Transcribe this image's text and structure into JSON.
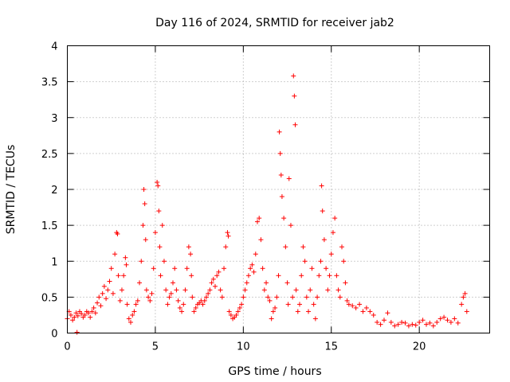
{
  "chart_data": {
    "type": "scatter",
    "title": "Day 116 of 2024, SRMTID for receiver jab2",
    "xlabel": "GPS time / hours",
    "ylabel": "SRMTID / TECUs",
    "xlim": [
      0,
      24
    ],
    "ylim": [
      0,
      4
    ],
    "xticks": [
      0,
      5,
      10,
      15,
      20
    ],
    "yticks": [
      0,
      0.5,
      1,
      1.5,
      2,
      2.5,
      3,
      3.5,
      4
    ],
    "xtick_labels": [
      "0",
      "5",
      "10",
      "15",
      "20"
    ],
    "ytick_labels": [
      "0",
      "0.5",
      "1",
      "1.5",
      "2",
      "2.5",
      "3",
      "3.5",
      "4"
    ],
    "grid": true,
    "marker": "+",
    "color": "#ff0000",
    "series": [
      {
        "name": "SRMTID",
        "x": [
          0.0,
          0.1,
          0.2,
          0.3,
          0.4,
          0.5,
          0.55,
          0.6,
          0.7,
          0.8,
          0.9,
          1.0,
          1.1,
          1.2,
          1.3,
          1.4,
          1.5,
          1.6,
          1.7,
          1.8,
          1.9,
          2.0,
          2.1,
          2.2,
          2.3,
          2.4,
          2.5,
          2.6,
          2.7,
          2.8,
          2.85,
          2.9,
          3.0,
          3.1,
          3.2,
          3.3,
          3.35,
          3.4,
          3.5,
          3.6,
          3.7,
          3.8,
          3.9,
          4.0,
          4.1,
          4.2,
          4.3,
          4.35,
          4.4,
          4.45,
          4.5,
          4.6,
          4.7,
          4.8,
          4.9,
          5.0,
          5.1,
          5.15,
          5.2,
          5.25,
          5.3,
          5.4,
          5.5,
          5.6,
          5.7,
          5.8,
          5.9,
          6.0,
          6.1,
          6.2,
          6.3,
          6.4,
          6.5,
          6.6,
          6.7,
          6.8,
          6.9,
          7.0,
          7.05,
          7.1,
          7.2,
          7.3,
          7.4,
          7.5,
          7.6,
          7.7,
          7.8,
          7.9,
          8.0,
          8.1,
          8.2,
          8.3,
          8.4,
          8.5,
          8.6,
          8.7,
          8.8,
          8.9,
          9.0,
          9.1,
          9.15,
          9.2,
          9.3,
          9.4,
          9.5,
          9.6,
          9.7,
          9.8,
          9.9,
          10.0,
          10.1,
          10.2,
          10.3,
          10.4,
          10.5,
          10.6,
          10.7,
          10.8,
          10.9,
          11.0,
          11.1,
          11.2,
          11.3,
          11.4,
          11.5,
          11.6,
          11.7,
          11.8,
          11.9,
          12.0,
          12.05,
          12.1,
          12.15,
          12.2,
          12.3,
          12.4,
          12.5,
          12.55,
          12.6,
          12.7,
          12.8,
          12.85,
          12.9,
          12.95,
          13.0,
          13.1,
          13.2,
          13.3,
          13.4,
          13.5,
          13.6,
          13.7,
          13.8,
          13.9,
          14.0,
          14.1,
          14.2,
          14.3,
          14.4,
          14.45,
          14.5,
          14.6,
          14.7,
          14.8,
          14.9,
          15.0,
          15.1,
          15.2,
          15.3,
          15.4,
          15.5,
          15.6,
          15.7,
          15.8,
          15.9,
          16.0,
          16.2,
          16.4,
          16.6,
          16.8,
          17.0,
          17.2,
          17.4,
          17.6,
          17.8,
          18.0,
          18.2,
          18.4,
          18.6,
          18.8,
          19.0,
          19.2,
          19.4,
          19.6,
          19.8,
          20.0,
          20.2,
          20.4,
          20.6,
          20.8,
          21.0,
          21.2,
          21.4,
          21.6,
          21.8,
          22.0,
          22.2,
          22.4,
          22.5,
          22.6,
          22.7
        ],
        "y": [
          0.2,
          0.3,
          0.25,
          0.18,
          0.22,
          0.28,
          0.01,
          0.24,
          0.3,
          0.27,
          0.22,
          0.25,
          0.3,
          0.28,
          0.22,
          0.3,
          0.35,
          0.28,
          0.42,
          0.5,
          0.38,
          0.55,
          0.65,
          0.48,
          0.6,
          0.72,
          0.9,
          0.55,
          1.1,
          1.4,
          1.38,
          0.8,
          0.45,
          0.6,
          0.8,
          1.05,
          0.95,
          0.4,
          0.2,
          0.15,
          0.25,
          0.3,
          0.4,
          0.45,
          0.7,
          1.0,
          1.5,
          2.0,
          1.8,
          1.3,
          0.6,
          0.5,
          0.45,
          0.55,
          0.9,
          1.4,
          2.1,
          2.05,
          1.7,
          1.2,
          0.8,
          1.5,
          1.0,
          0.6,
          0.4,
          0.5,
          0.55,
          0.7,
          0.9,
          0.6,
          0.45,
          0.35,
          0.3,
          0.4,
          0.6,
          0.9,
          1.2,
          1.1,
          0.8,
          0.5,
          0.3,
          0.35,
          0.4,
          0.42,
          0.45,
          0.4,
          0.45,
          0.5,
          0.55,
          0.6,
          0.7,
          0.75,
          0.65,
          0.8,
          0.85,
          0.6,
          0.5,
          0.9,
          1.2,
          1.4,
          1.35,
          0.3,
          0.25,
          0.2,
          0.22,
          0.25,
          0.3,
          0.35,
          0.4,
          0.5,
          0.6,
          0.7,
          0.8,
          0.9,
          0.95,
          0.85,
          1.1,
          1.55,
          1.6,
          1.3,
          0.9,
          0.6,
          0.7,
          0.5,
          0.45,
          0.2,
          0.3,
          0.35,
          0.5,
          0.8,
          2.8,
          2.5,
          2.2,
          1.9,
          1.6,
          1.2,
          0.7,
          0.4,
          2.15,
          1.5,
          0.5,
          3.58,
          3.3,
          2.9,
          0.6,
          0.3,
          0.4,
          0.8,
          1.2,
          1.0,
          0.5,
          0.3,
          0.6,
          0.9,
          0.4,
          0.2,
          0.5,
          0.8,
          1.0,
          2.05,
          1.7,
          1.3,
          0.9,
          0.6,
          0.8,
          1.1,
          1.4,
          1.6,
          0.8,
          0.6,
          0.5,
          1.2,
          1.0,
          0.7,
          0.45,
          0.4,
          0.38,
          0.35,
          0.4,
          0.3,
          0.35,
          0.3,
          0.25,
          0.15,
          0.12,
          0.18,
          0.28,
          0.15,
          0.1,
          0.12,
          0.15,
          0.14,
          0.1,
          0.12,
          0.11,
          0.15,
          0.18,
          0.12,
          0.14,
          0.1,
          0.15,
          0.2,
          0.22,
          0.18,
          0.15,
          0.2,
          0.14,
          0.4,
          0.5,
          0.55,
          0.3
        ]
      }
    ]
  }
}
